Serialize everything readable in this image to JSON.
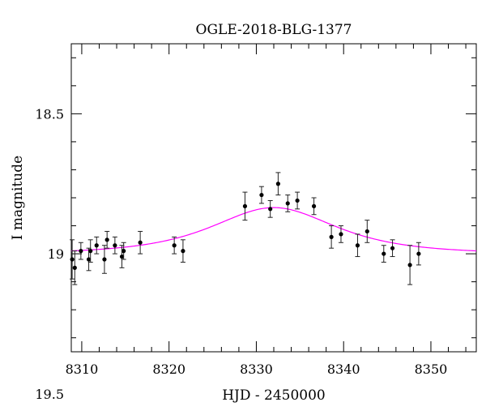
{
  "chart_data": {
    "type": "scatter",
    "title": "OGLE-2018-BLG-1377",
    "xlabel": "HJD - 2450000",
    "ylabel": "I magnitude",
    "xlim": [
      8308.8,
      8355.2
    ],
    "ylim": [
      19.35,
      18.25
    ],
    "y_inverted": true,
    "grid": false,
    "x_ticks": [
      8310,
      8320,
      8330,
      8340,
      8350
    ],
    "x_tick_labels": [
      "8310",
      "8320",
      "8330",
      "8340",
      "8350"
    ],
    "y_ticks": [
      18.5,
      19,
      19.5
    ],
    "y_tick_labels": [
      "18.5",
      "19",
      "19.5"
    ],
    "series": [
      {
        "kind": "points_with_errorbars",
        "color": "#000000",
        "points": [
          {
            "x": 8308.9,
            "y": 19.02,
            "err": 0.07
          },
          {
            "x": 8309.2,
            "y": 19.05,
            "err": 0.06
          },
          {
            "x": 8309.9,
            "y": 18.99,
            "err": 0.03
          },
          {
            "x": 8310.8,
            "y": 19.02,
            "err": 0.04
          },
          {
            "x": 8311.0,
            "y": 18.99,
            "err": 0.04
          },
          {
            "x": 8311.7,
            "y": 18.97,
            "err": 0.03
          },
          {
            "x": 8312.6,
            "y": 19.02,
            "err": 0.05
          },
          {
            "x": 8312.9,
            "y": 18.95,
            "err": 0.03
          },
          {
            "x": 8313.8,
            "y": 18.97,
            "err": 0.03
          },
          {
            "x": 8314.6,
            "y": 19.01,
            "err": 0.04
          },
          {
            "x": 8314.8,
            "y": 18.99,
            "err": 0.03
          },
          {
            "x": 8316.7,
            "y": 18.96,
            "err": 0.04
          },
          {
            "x": 8320.6,
            "y": 18.97,
            "err": 0.03
          },
          {
            "x": 8321.6,
            "y": 18.99,
            "err": 0.04
          },
          {
            "x": 8328.7,
            "y": 18.83,
            "err": 0.05
          },
          {
            "x": 8330.6,
            "y": 18.79,
            "err": 0.03
          },
          {
            "x": 8331.6,
            "y": 18.84,
            "err": 0.03
          },
          {
            "x": 8332.5,
            "y": 18.75,
            "err": 0.04
          },
          {
            "x": 8333.6,
            "y": 18.82,
            "err": 0.03
          },
          {
            "x": 8334.7,
            "y": 18.81,
            "err": 0.03
          },
          {
            "x": 8336.6,
            "y": 18.83,
            "err": 0.03
          },
          {
            "x": 8338.6,
            "y": 18.94,
            "err": 0.04
          },
          {
            "x": 8339.7,
            "y": 18.93,
            "err": 0.03
          },
          {
            "x": 8341.6,
            "y": 18.97,
            "err": 0.04
          },
          {
            "x": 8342.7,
            "y": 18.92,
            "err": 0.04
          },
          {
            "x": 8344.6,
            "y": 19.0,
            "err": 0.03
          },
          {
            "x": 8345.6,
            "y": 18.98,
            "err": 0.03
          },
          {
            "x": 8347.6,
            "y": 19.04,
            "err": 0.07
          },
          {
            "x": 8348.6,
            "y": 19.0,
            "err": 0.04
          }
        ]
      },
      {
        "kind": "model_curve",
        "color": "#ff00ff",
        "t0": 8332.0,
        "u0": 1.15,
        "tE": 8.0,
        "fs": 0.65,
        "baseline": 19.0
      }
    ]
  }
}
